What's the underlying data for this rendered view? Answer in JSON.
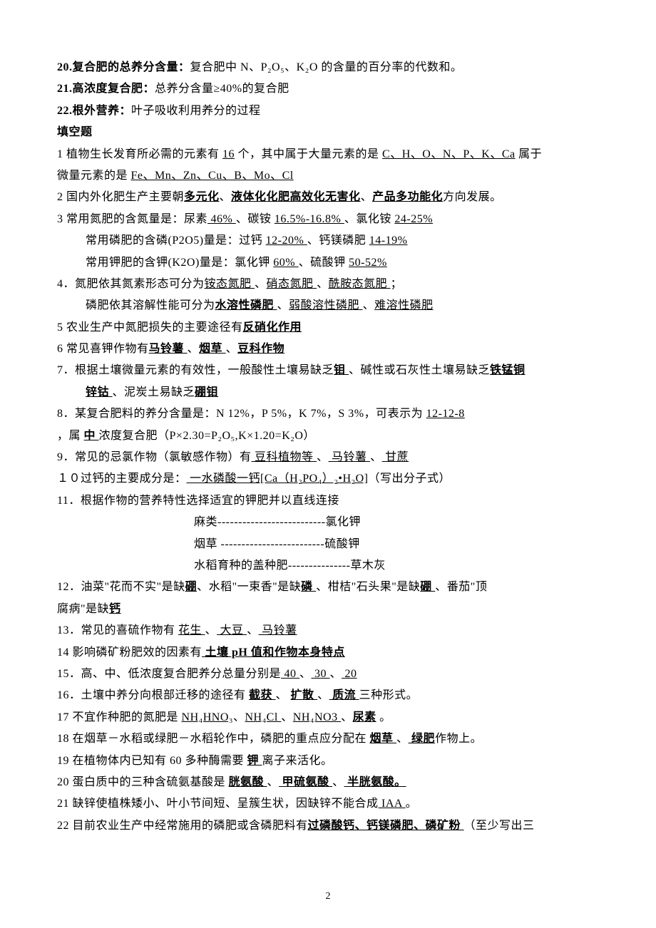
{
  "defs": {
    "d20": {
      "label": "20.复合肥的总养分含量：",
      "body": "复合肥中 N、P₂O₅、K₂O 的含量的百分率的代数和。"
    },
    "d21": {
      "label": "21.高浓度复合肥：",
      "body": "总养分含量≥40%的复合肥"
    },
    "d22": {
      "label": "22.根外营养：",
      "body": "叶子吸收利用养分的过程"
    }
  },
  "section_fill": "填空题",
  "q1": {
    "pre": "1 植物生长发育所必需的元素有 ",
    "u1": "16",
    "mid1": " 个，其中属于大量元素的是 ",
    "u2": "C、H、O、N、P、K、Ca",
    "tail": "  属于",
    "line2_pre": "微量元素的是 ",
    "u3": "Fe、Mn、Zn、Cu、B、Mo、Cl"
  },
  "q2": {
    "pre": "2 国内外化肥生产主要朝",
    "u1": "多元化",
    "m1": "、",
    "u2": "液体化化肥高效化无害化",
    "m2": "、",
    "u3": "产品多功能化",
    "tail": "方向发展。"
  },
  "q3": {
    "a_pre": "3 常用氮肥的含氮量是：尿素",
    "a_u1": " 46% ",
    "a_m1": "、碳铵 ",
    "a_u2": "16.5%-16.8% ",
    "a_m2": "、氯化铵 ",
    "a_u3": "24-25%  ",
    "b_pre": "常用磷肥的含磷(P2O5)量是：过钙 ",
    "b_u1": "12-20%  ",
    "b_m1": "、钙镁磷肥 ",
    "b_u2": "14-19%  ",
    "c_pre": "常用钾肥的含钾(K2O)量是：氯化钾 ",
    "c_u1": "60%  ",
    "c_m1": "、硫酸钾 ",
    "c_u2": "50-52%    "
  },
  "q4": {
    "a_pre": "4．氮肥依其氮素形态可分为",
    "a_u1": "铵态氮肥  ",
    "a_m1": "、",
    "a_u2": "硝态氮肥  ",
    "a_m2": "、",
    "a_u3": "酰胺态氮肥  ",
    "a_tail": "；",
    "b_pre": "磷肥依其溶解性能可分为",
    "b_u1": "水溶性磷肥   ",
    "b_m1": "、",
    "b_u2": "弱酸溶性磷肥   ",
    "b_m2": "、",
    "b_u3": "难溶性磷肥  "
  },
  "q5": {
    "pre": "5  农业生产中氮肥损失的主要途径有",
    "u1": "反硝化作用        "
  },
  "q6": {
    "pre": "6  常见喜钾作物有",
    "u1": "马铃薯    ",
    "m1": "、",
    "u2": "烟草    ",
    "m2": "、",
    "u3": "豆科作物    "
  },
  "q7": {
    "a_pre": "7．根据土壤微量元素的有效性，一般酸性土壤易缺乏",
    "a_u1": "钼  ",
    "a_m1": "、碱性或石灰性土壤易缺乏",
    "a_u2": "铁锰铜",
    "b_u1": "锌钴  ",
    "b_m1": "、泥炭土易缺乏",
    "b_u2": "硼钼    "
  },
  "q8": {
    "a_pre": "8．某复合肥料的养分含量是：N 12%，P 5%，K 7%，S 3%，可表示为 ",
    "a_u1": "12-12-8    ",
    "b_pre": "，属 ",
    "b_u1": "  中  ",
    "b_tail": "浓度复合肥（P×2.30=P₂O₅,K×1.20=K₂O）"
  },
  "q9": {
    "pre": "9．常见的忌氯作物（氯敏感作物）有",
    "u1": " 豆科植物等 ",
    "m1": "、",
    "u2": "   马铃薯    ",
    "m2": "、",
    "u3": "  甘蔗  "
  },
  "q10": {
    "pre": "１０过钙的主要成分是：",
    "u1": " 一水磷酸一钙[Ca（H₂PO₄）₂•H₂O]",
    "tail": "（写出分子式）"
  },
  "q11": {
    "title": "11．根据作物的营养特性选择适宜的钾肥并以直线连接",
    "a": "麻类--------------------------氯化钾",
    "b": "烟草 -------------------------硫酸钾",
    "c": "水稻育种的盖种肥---------------草木灰"
  },
  "q12": {
    "a_pre": "12．油菜\"花而不实\"是缺",
    "a_u1": "硼",
    "a_m1": "、水稻\"一束香\"是缺",
    "a_u2": "磷  ",
    "a_m2": "、柑桔\"石头果\"是缺",
    "a_u3": "硼  ",
    "a_m3": "、番茄\"顶",
    "b_pre": "腐病\"是缺",
    "b_u1": "钙    "
  },
  "q13": {
    "pre": "13．常见的喜硫作物有 ",
    "u1": " 花生  ",
    "m1": "、",
    "u2": "    大豆    ",
    "m2": "、",
    "u3": " 马铃薯   "
  },
  "q14": {
    "pre": "14 影响磷矿粉肥效的因素有",
    "u1": "  土壤 pH 值和作物本身特点   "
  },
  "q15": {
    "pre": "15．高、中、低浓度复合肥养分总量分别是",
    "u1": "  40   ",
    "m1": "、",
    "u2": "   30  ",
    "m2": " 、",
    "u3": "   20   "
  },
  "q16": {
    "pre": "16．土壤中养分向根部迁移的途径有 ",
    "u1": "  截获   ",
    "m1": " 、 ",
    "u2": "  扩散   ",
    "m2": " 、",
    "u3": "  质流    ",
    "tail": " 三种形式。"
  },
  "q17": {
    "pre": "17 不宜作种肥的氮肥是 ",
    "u1": "NH₄HNO₃",
    "m1": "、",
    "u2": "NH₄Cl ",
    "m2": "、",
    "u3": "NH₄NO3 ",
    "m3": "、",
    "u4": "尿素",
    "tail": " 。"
  },
  "q18": {
    "pre": "18 在烟草－水稻或绿肥－水稻轮作中，磷肥的重点应分配在 ",
    "u1": " 烟草   ",
    "m1": "、",
    "u2": " 绿肥",
    "tail": "作物上。"
  },
  "q19": {
    "pre": "19 在植物体内已知有 60 多种酶需要 ",
    "u1": " 钾  ",
    "tail": "离子来活化。"
  },
  "q20": {
    "pre": "20 蛋白质中的三种含硫氨基酸是 ",
    "u1": " 胱氨酸     ",
    "m1": " 、",
    "u2": " 甲硫氨酸     ",
    "m2": " 、",
    "u3": "   半胱氨酸。  "
  },
  "q21": {
    "pre": "21 缺锌使植株矮小、叶小节间短、呈簇生状，因缺锌不能合成",
    "u1": " IAA    ",
    "tail": " 。"
  },
  "q22": {
    "pre": "22 目前农业生产中经常施用的磷肥或含磷肥料有",
    "u1": "过磷酸钙、钙镁磷肥、磷矿粉  ",
    "tail": "（至少写出三"
  },
  "pagenum": "2"
}
